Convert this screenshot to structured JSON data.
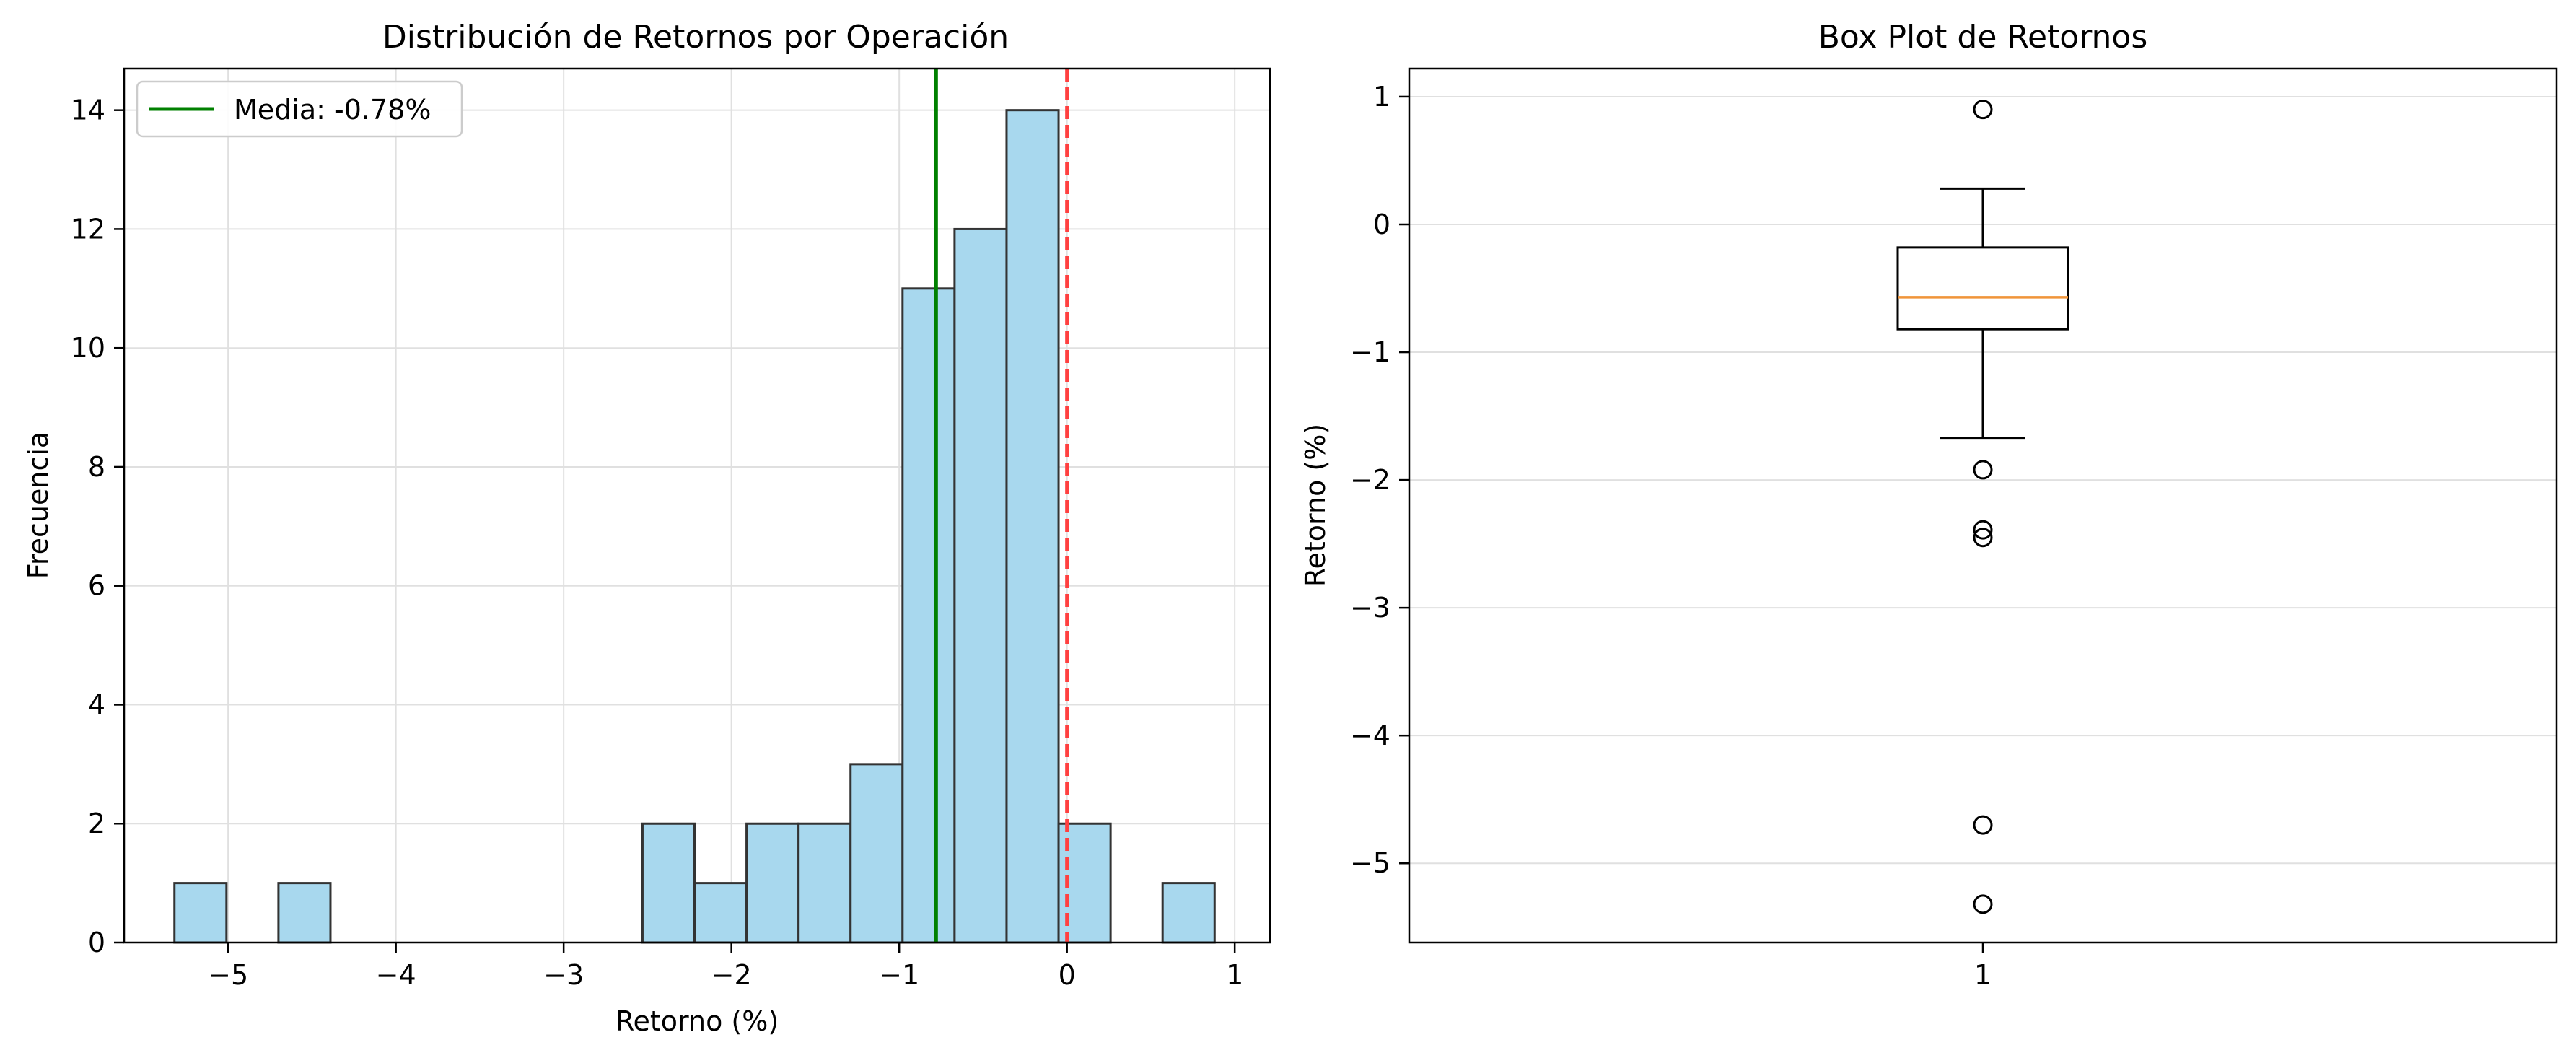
{
  "chart_data": [
    {
      "type": "bar",
      "title": "Distribución de Retornos por Operación",
      "xlabel": "Retorno (%)",
      "ylabel": "Frecuencia",
      "xlim": [
        -5.62,
        1.21
      ],
      "ylim": [
        0,
        14.7
      ],
      "grid": true,
      "bin_edges": [
        -5.32,
        -5.01,
        -4.7,
        -4.39,
        -4.08,
        -3.77,
        -3.46,
        -3.15,
        -2.84,
        -2.53,
        -2.22,
        -1.91,
        -1.6,
        -1.29,
        -0.98,
        -0.67,
        -0.36,
        -0.05,
        0.26,
        0.57,
        0.88
      ],
      "counts": [
        1,
        0,
        1,
        0,
        0,
        0,
        0,
        0,
        0,
        2,
        1,
        2,
        2,
        3,
        11,
        12,
        14,
        2,
        0,
        1
      ],
      "xticks": [
        {
          "value": -5,
          "label": "−5"
        },
        {
          "value": -4,
          "label": "−4"
        },
        {
          "value": -3,
          "label": "−3"
        },
        {
          "value": -2,
          "label": "−2"
        },
        {
          "value": -1,
          "label": "−1"
        },
        {
          "value": 0,
          "label": "0"
        },
        {
          "value": 1,
          "label": "1"
        }
      ],
      "yticks": [
        {
          "value": 0,
          "label": "0"
        },
        {
          "value": 2,
          "label": "2"
        },
        {
          "value": 4,
          "label": "4"
        },
        {
          "value": 6,
          "label": "6"
        },
        {
          "value": 8,
          "label": "8"
        },
        {
          "value": 10,
          "label": "10"
        },
        {
          "value": 12,
          "label": "12"
        },
        {
          "value": 14,
          "label": "14"
        }
      ],
      "mean_line": {
        "x": -0.78,
        "label": "Media: -0.78%",
        "color": "#008000"
      },
      "zero_line": {
        "x": 0,
        "color": "#ff4040",
        "style": "dashed"
      },
      "legend": {
        "placement": "top-left",
        "entries": [
          "Media: -0.78%"
        ]
      },
      "colors": {
        "bar_fill": "#a8d8ee",
        "bar_edge": "#333333",
        "grid": "#e0e0e0"
      }
    },
    {
      "type": "box",
      "title": "Box Plot de Retornos",
      "xlabel": "",
      "ylabel": "Retorno (%)",
      "ylim": [
        -5.62,
        1.22
      ],
      "grid": true,
      "category": "1",
      "box": {
        "whisker_low": -1.67,
        "q1": -0.82,
        "median": -0.57,
        "q3": -0.18,
        "whisker_high": 0.28
      },
      "outliers": [
        0.9,
        -1.92,
        -2.39,
        -2.45,
        -4.7,
        -5.32
      ],
      "yticks": [
        {
          "value": 1,
          "label": "1"
        },
        {
          "value": 0,
          "label": "0"
        },
        {
          "value": -1,
          "label": "−1"
        },
        {
          "value": -2,
          "label": "−2"
        },
        {
          "value": -3,
          "label": "−3"
        },
        {
          "value": -4,
          "label": "−4"
        },
        {
          "value": -5,
          "label": "−5"
        }
      ],
      "colors": {
        "median": "#f0953a",
        "box_edge": "#000000",
        "grid": "#e0e0e0"
      }
    }
  ]
}
